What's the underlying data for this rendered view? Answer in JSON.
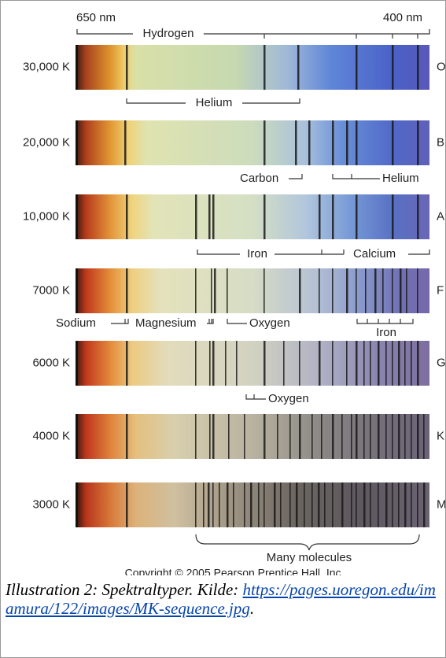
{
  "figure": {
    "wavelength_labels": [
      "650 nm",
      "400 nm"
    ],
    "spectra": [
      {
        "temperature": "30,000 K",
        "class": "O"
      },
      {
        "temperature": "20,000 K",
        "class": "B"
      },
      {
        "temperature": "10,000 K",
        "class": "A"
      },
      {
        "temperature": "7000 K",
        "class": "F"
      },
      {
        "temperature": "6000 K",
        "class": "G"
      },
      {
        "temperature": "4000 K",
        "class": "K"
      },
      {
        "temperature": "3000 K",
        "class": "M"
      }
    ],
    "annotations": [
      "Hydrogen",
      "Helium",
      "Carbon",
      "Helium",
      "Iron",
      "Calcium",
      "Sodium",
      "Magnesium",
      "Oxygen",
      "Iron",
      "Oxygen",
      "Many molecules"
    ],
    "copyright": "Copyright © 2005 Pearson Prentice Hall, Inc."
  },
  "caption": {
    "text": "Illustration 2: Spektraltyper. Kilde: ",
    "link": "https://pages.uoregon.edu/imamura/122/images/MK-sequence.jpg",
    "end": "."
  }
}
